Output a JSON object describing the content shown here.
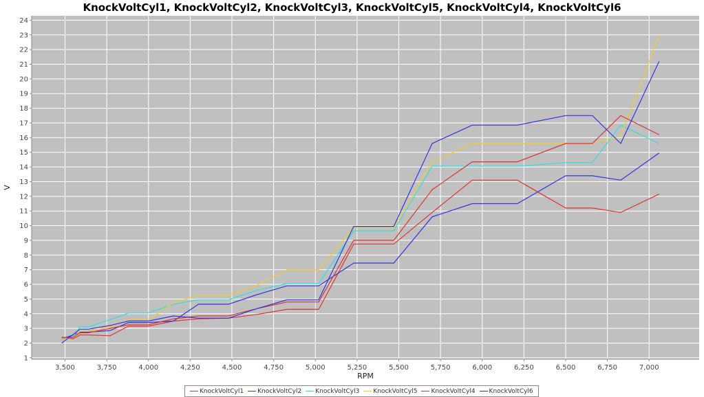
{
  "chart_data": {
    "type": "line",
    "title": "KnockVoltCyl1, KnockVoltCyl2, KnockVoltCyl3, KnockVoltCyl5, KnockVoltCyl4, KnockVoltCyl6",
    "xlabel": "RPM",
    "ylabel": "V",
    "xlim": [
      3300,
      7300
    ],
    "ylim": [
      0.9,
      24.3
    ],
    "x_ticks": [
      3500,
      3750,
      4000,
      4250,
      4500,
      4750,
      5000,
      5250,
      5500,
      5750,
      6000,
      6250,
      6500,
      6750,
      7000
    ],
    "x_tick_labels": [
      "3,500",
      "3,750",
      "4,000",
      "4,250",
      "4,500",
      "4,750",
      "5,000",
      "5,250",
      "5,500",
      "5,750",
      "6,000",
      "6,250",
      "6,500",
      "6,750",
      "7,000"
    ],
    "y_ticks": [
      1,
      2,
      3,
      4,
      5,
      6,
      7,
      8,
      9,
      10,
      11,
      12,
      13,
      14,
      15,
      16,
      17,
      18,
      19,
      20,
      21,
      22,
      23,
      24
    ],
    "grid": true,
    "legend_position": "bottom",
    "plot_background": "#c0c0c0",
    "grid_color": "#ffffff",
    "series": [
      {
        "name": "KnockVoltCyl1",
        "color": "#dd3333",
        "x": [
          3480,
          3550,
          3590,
          3640,
          3770,
          3880,
          4000,
          4150,
          4300,
          4480,
          4650,
          4830,
          5020,
          5230,
          5470,
          5700,
          5940,
          6210,
          6500,
          6660,
          6830,
          7060
        ],
        "y": [
          2.4,
          2.3,
          2.55,
          2.55,
          2.5,
          3.15,
          3.15,
          3.5,
          3.65,
          3.7,
          3.95,
          4.3,
          4.3,
          8.75,
          8.75,
          10.9,
          13.1,
          13.1,
          11.2,
          11.2,
          10.9,
          12.15
        ]
      },
      {
        "name": "KnockVoltCyl2",
        "color": "#3333dd",
        "x": [
          3480,
          3550,
          3590,
          3640,
          3770,
          3880,
          4000,
          4150,
          4300,
          4480,
          4650,
          4830,
          5020,
          5230,
          5470,
          5700,
          5940,
          6210,
          6500,
          6660,
          6830,
          7060
        ],
        "y": [
          2.3,
          2.55,
          2.75,
          2.75,
          2.85,
          3.4,
          3.4,
          3.5,
          4.65,
          4.65,
          5.3,
          5.9,
          5.9,
          7.45,
          7.45,
          10.6,
          11.5,
          11.5,
          13.4,
          13.4,
          13.1,
          14.95
        ]
      },
      {
        "name": "KnockVoltCyl3",
        "color": "#33dddd",
        "x": [
          3480,
          3550,
          3590,
          3640,
          3770,
          3880,
          4000,
          4150,
          4300,
          4480,
          4650,
          4830,
          5020,
          5230,
          5470,
          5700,
          5940,
          6210,
          6500,
          6660,
          6830,
          7060
        ],
        "y": [
          2.2,
          2.5,
          3.1,
          3.1,
          3.6,
          4.05,
          4.05,
          4.65,
          4.95,
          4.95,
          5.6,
          6.05,
          6.05,
          9.65,
          9.65,
          14.05,
          14.05,
          14.05,
          14.3,
          14.3,
          16.85,
          15.6
        ]
      },
      {
        "name": "KnockVoltCyl5",
        "color": "#eecc33",
        "x": [
          3480,
          3550,
          3590,
          3640,
          3770,
          3880,
          4000,
          4150,
          4300,
          4480,
          4650,
          4830,
          5020,
          5230,
          5470,
          5700,
          5940,
          6210,
          6500,
          6660,
          6830,
          7060
        ],
        "y": [
          2.3,
          2.4,
          2.8,
          2.8,
          3.1,
          3.6,
          3.6,
          4.75,
          5.25,
          5.25,
          5.95,
          7.0,
          7.0,
          9.85,
          9.85,
          14.35,
          15.6,
          15.6,
          15.6,
          15.6,
          16.1,
          23.0
        ]
      },
      {
        "name": "KnockVoltCyl4",
        "color": "#dd3333",
        "x": [
          3480,
          3550,
          3590,
          3640,
          3770,
          3880,
          4000,
          4150,
          4300,
          4480,
          4650,
          4830,
          5020,
          5230,
          5470,
          5700,
          5940,
          6210,
          6500,
          6660,
          6830,
          7060
        ],
        "y": [
          2.35,
          2.4,
          2.7,
          2.7,
          3.0,
          3.25,
          3.25,
          3.65,
          3.85,
          3.85,
          4.35,
          4.8,
          4.8,
          9.0,
          9.0,
          12.45,
          14.35,
          14.35,
          15.6,
          15.6,
          17.5,
          16.2
        ]
      },
      {
        "name": "KnockVoltCyl6",
        "color": "#3333dd",
        "x": [
          3480,
          3550,
          3590,
          3640,
          3770,
          3880,
          4000,
          4150,
          4300,
          4480,
          4650,
          4830,
          5020,
          5230,
          5470,
          5700,
          5940,
          6210,
          6500,
          6660,
          6830,
          7060
        ],
        "y": [
          2.0,
          2.6,
          2.95,
          2.95,
          3.2,
          3.5,
          3.5,
          3.85,
          3.7,
          3.7,
          4.35,
          4.95,
          4.95,
          9.95,
          9.95,
          15.6,
          16.85,
          16.85,
          17.5,
          17.5,
          15.6,
          21.2
        ]
      }
    ]
  }
}
